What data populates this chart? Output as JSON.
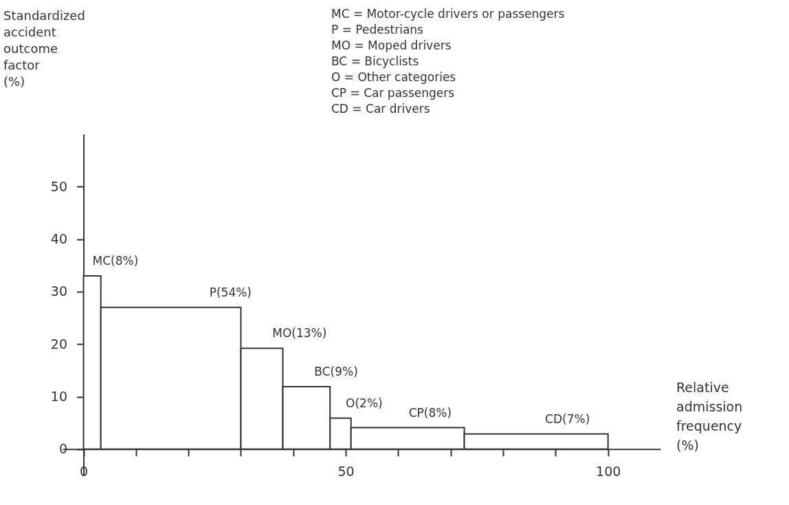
{
  "chart_data": {
    "type": "histogram",
    "xlabel": "Relative admission frequency (%)",
    "ylabel": "Standardized accident outcome factor (%)",
    "bins": [
      0,
      3.3,
      30,
      38,
      47,
      51,
      72.6,
      100
    ],
    "values": [
      33,
      27,
      19.2,
      11.9,
      5.9,
      4.1,
      2.9
    ],
    "color": "#ffffff",
    "xlim": [
      -4,
      110
    ],
    "ylim": [
      -5,
      60
    ],
    "xticks": [
      0,
      {
        "value": 10,
        "label": null
      },
      {
        "value": 20,
        "label": null
      },
      {
        "value": 30,
        "label": null
      },
      {
        "value": 40,
        "label": null
      },
      50,
      {
        "value": 60,
        "label": null
      },
      {
        "value": 70,
        "label": null
      },
      {
        "value": 80,
        "label": null
      },
      {
        "value": 90,
        "label": null
      },
      100
    ],
    "yticks": [
      0,
      10,
      20,
      30,
      40,
      50
    ],
    "grid": false,
    "annotations": [
      "MC = Motor-cycle drivers or passengers",
      "P = Pedestrians",
      "MO = Moped drivers",
      "BC = Bicyclists",
      "O = Other categories",
      "CP = Car passengers",
      "CD = Car drivers",
      {
        "text": "MC(8%)",
        "x": 1.7,
        "y": 33
      },
      {
        "text": "P(54%)",
        "x": 24,
        "y": 27
      },
      {
        "text": "MO(13%)",
        "x": 36,
        "y": 19.2
      },
      {
        "text": "BC(9%)",
        "x": 44,
        "y": 11.9
      },
      {
        "text": "O(2%)",
        "x": 50,
        "y": 5.9
      },
      {
        "text": "CP(8%)",
        "x": 62,
        "y": 4.1
      },
      {
        "text": "CD(7%)",
        "x": 88,
        "y": 2.9
      }
    ]
  }
}
